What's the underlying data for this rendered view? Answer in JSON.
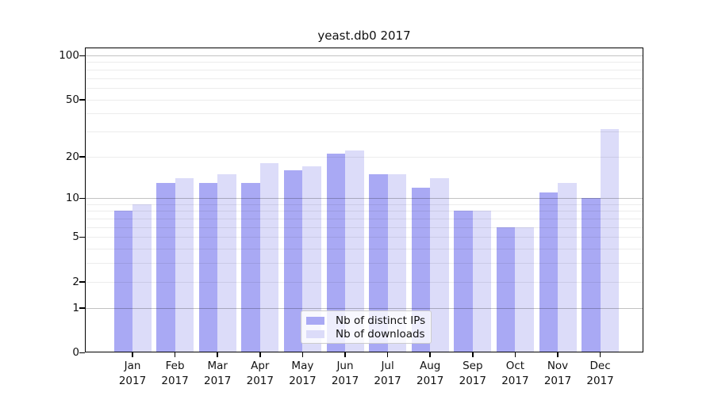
{
  "title": "yeast.db0 2017",
  "legend": {
    "items": [
      {
        "label": "Nb of distinct IPs",
        "color": "#a9a9f4"
      },
      {
        "label": "Nb of downloads",
        "color": "#dcdcf9"
      }
    ]
  },
  "colors": {
    "ips_bar": "#a9a9f4",
    "downloads_bar": "#dcdcf9",
    "axis": "#000000",
    "legend_border": "#cccccc"
  },
  "chart_data": {
    "type": "bar",
    "title": "yeast.db0 2017",
    "categories": [
      "Jan 2017",
      "Feb 2017",
      "Mar 2017",
      "Apr 2017",
      "May 2017",
      "Jun 2017",
      "Jul 2017",
      "Aug 2017",
      "Sep 2017",
      "Oct 2017",
      "Nov 2017",
      "Dec 2017"
    ],
    "months": [
      "Jan",
      "Feb",
      "Mar",
      "Apr",
      "May",
      "Jun",
      "Jul",
      "Aug",
      "Sep",
      "Oct",
      "Nov",
      "Dec"
    ],
    "year": "2017",
    "series": [
      {
        "name": "Nb of distinct IPs",
        "color": "#a9a9f4",
        "values": [
          8,
          13,
          13,
          13,
          16,
          21,
          15,
          12,
          8,
          6,
          11,
          10
        ]
      },
      {
        "name": "Nb of downloads",
        "color": "#dcdcf9",
        "values": [
          9,
          14,
          15,
          18,
          17,
          22,
          15,
          14,
          8,
          6,
          13,
          31
        ]
      }
    ],
    "xlabel": "",
    "ylabel": "",
    "yscale": "log1p",
    "ylim": [
      0,
      110
    ],
    "ytick_labels": [
      0,
      1,
      2,
      5,
      10,
      20,
      50,
      100
    ],
    "major_gridlines": [
      1,
      10,
      100
    ],
    "minor_gridlines": [
      2,
      3,
      4,
      5,
      6,
      7,
      8,
      9,
      20,
      30,
      40,
      50,
      60,
      70,
      80,
      90
    ],
    "grid": true,
    "legend_position": "lower center"
  }
}
